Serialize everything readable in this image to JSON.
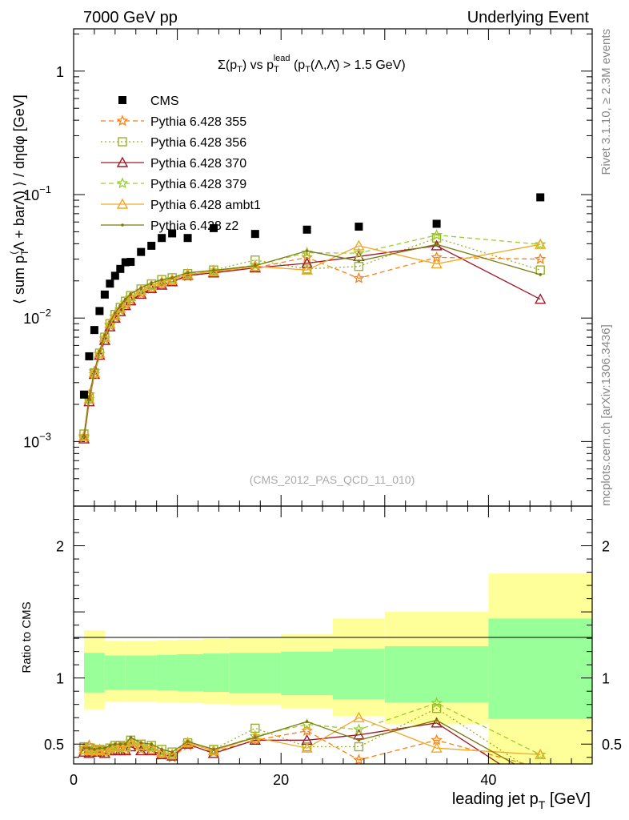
{
  "header": {
    "left": "7000 GeV pp",
    "right": "Underlying Event",
    "side_top": "Rivet 3.1.10, ≥ 2.3M events",
    "side_bottom": "mcplots.cern.ch [arXiv:1306.3436]",
    "watermark": "(CMS_2012_PAS_QCD_11_010)"
  },
  "chart_data": [
    {
      "type": "scatter",
      "panel": "main",
      "title_parts": {
        "a": "Σ(p",
        "a_sub": "T",
        "b": ") vs p",
        "b_sub": "T",
        "b_sup": "lead",
        "c": " (p",
        "c_sub": "T",
        "d": "(Λ,Λ̄) > 1.5 GeV)"
      },
      "ylabel": "⟨ sum p_T(Λ + barΛ) ⟩ / dηdφ [GeV]",
      "ylabel_parts": {
        "a": "⟨ sum p",
        "a_sub": "T",
        "a_sup": "(",
        "b": "Λ + barΛ) ⟩ / dηdφ [GeV]"
      },
      "y_scale": "log",
      "ylim": [
        0.0003,
        2.2
      ],
      "xlim": [
        0,
        50
      ],
      "y_ticks": [
        {
          "value": 0.001,
          "base": "10",
          "exp": "−3"
        },
        {
          "value": 0.01,
          "base": "10",
          "exp": "−2"
        },
        {
          "value": 0.1,
          "base": "10",
          "exp": "−1"
        },
        {
          "value": 1,
          "label": "1"
        }
      ],
      "legend_position": "top-left",
      "series": [
        {
          "name": "CMS",
          "color": "#000000",
          "marker": "square-filled",
          "line": "none",
          "x": [
            1.0,
            1.5,
            2.0,
            2.5,
            3.0,
            3.5,
            4.0,
            4.5,
            5.0,
            5.5,
            6.5,
            7.5,
            8.5,
            9.5,
            11.0,
            13.5,
            17.5,
            22.5,
            27.5,
            35.0,
            45.0
          ],
          "y": [
            0.0024,
            0.0049,
            0.008,
            0.0114,
            0.0155,
            0.019,
            0.022,
            0.025,
            0.0283,
            0.0285,
            0.0343,
            0.0385,
            0.0445,
            0.0485,
            0.0445,
            0.0535,
            0.048,
            0.052,
            0.055,
            0.058,
            0.095
          ]
        },
        {
          "name": "Pythia 6.428 355",
          "color": "#ff7f0e",
          "marker": "star",
          "line": "dashed",
          "x": [
            1.0,
            1.5,
            2.0,
            2.5,
            3.0,
            3.5,
            4.0,
            4.5,
            5.0,
            5.5,
            6.5,
            7.5,
            8.5,
            9.5,
            11.0,
            13.5,
            17.5,
            22.5,
            27.5,
            35.0,
            45.0
          ],
          "y": [
            0.0011,
            0.0024,
            0.0037,
            0.0051,
            0.0068,
            0.0087,
            0.0102,
            0.0116,
            0.0128,
            0.0141,
            0.0158,
            0.0173,
            0.0186,
            0.0196,
            0.0218,
            0.0235,
            0.0255,
            0.031,
            0.021,
            0.031,
            0.03
          ]
        },
        {
          "name": "Pythia 6.428 356",
          "color": "#99b02a",
          "marker": "square-open",
          "line": "dotted",
          "x": [
            1.0,
            1.5,
            2.0,
            2.5,
            3.0,
            3.5,
            4.0,
            4.5,
            5.0,
            5.5,
            6.5,
            7.5,
            8.5,
            9.5,
            11.0,
            13.5,
            17.5,
            22.5,
            27.5,
            35.0,
            45.0
          ],
          "y": [
            0.00115,
            0.0023,
            0.0036,
            0.0052,
            0.007,
            0.009,
            0.0107,
            0.0122,
            0.0137,
            0.0152,
            0.0172,
            0.0189,
            0.0205,
            0.0212,
            0.0229,
            0.0245,
            0.0295,
            0.025,
            0.0262,
            0.0445,
            0.0245
          ]
        },
        {
          "name": "Pythia 6.428 370",
          "color": "#a01826",
          "marker": "triangle-open",
          "line": "solid",
          "x": [
            1.0,
            1.5,
            2.0,
            2.5,
            3.0,
            3.5,
            4.0,
            4.5,
            5.0,
            5.5,
            6.5,
            7.5,
            8.5,
            9.5,
            11.0,
            13.5,
            17.5,
            22.5,
            27.5,
            35.0,
            45.0
          ],
          "y": [
            0.00105,
            0.0021,
            0.0035,
            0.005,
            0.0066,
            0.0085,
            0.01,
            0.0113,
            0.0126,
            0.0138,
            0.0156,
            0.0173,
            0.0185,
            0.0197,
            0.0222,
            0.0232,
            0.0255,
            0.0278,
            0.0315,
            0.0385,
            0.0142
          ]
        },
        {
          "name": "Pythia 6.428 379",
          "color": "#9acd32",
          "marker": "star",
          "line": "dashed",
          "x": [
            1.0,
            1.5,
            2.0,
            2.5,
            3.0,
            3.5,
            4.0,
            4.5,
            5.0,
            5.5,
            6.5,
            7.5,
            8.5,
            9.5,
            11.0,
            13.5,
            17.5,
            22.5,
            27.5,
            35.0,
            45.0
          ],
          "y": [
            0.00108,
            0.0022,
            0.0035,
            0.0051,
            0.0068,
            0.0088,
            0.0103,
            0.0118,
            0.0133,
            0.0147,
            0.0165,
            0.0182,
            0.0197,
            0.0206,
            0.0227,
            0.0242,
            0.0268,
            0.0338,
            0.0335,
            0.047,
            0.0395
          ]
        },
        {
          "name": "Pythia 6.428 ambt1",
          "color": "#f5a623",
          "marker": "triangle-open",
          "line": "solid",
          "x": [
            1.0,
            1.5,
            2.0,
            2.5,
            3.0,
            3.5,
            4.0,
            4.5,
            5.0,
            5.5,
            6.5,
            7.5,
            8.5,
            9.5,
            11.0,
            13.5,
            17.5,
            22.5,
            27.5,
            35.0,
            45.0
          ],
          "y": [
            0.0011,
            0.0022,
            0.0036,
            0.0052,
            0.007,
            0.009,
            0.0106,
            0.012,
            0.0135,
            0.0149,
            0.0167,
            0.0183,
            0.0196,
            0.0205,
            0.0225,
            0.0238,
            0.0262,
            0.0245,
            0.0385,
            0.0275,
            0.0395
          ]
        },
        {
          "name": "Pythia 6.428 z2",
          "color": "#7a7a10",
          "marker": "dot",
          "line": "solid",
          "x": [
            1.0,
            1.5,
            2.0,
            2.5,
            3.0,
            3.5,
            4.0,
            4.5,
            5.0,
            5.5,
            6.5,
            7.5,
            8.5,
            9.5,
            11.0,
            13.5,
            17.5,
            22.5,
            27.5,
            35.0,
            45.0
          ],
          "y": [
            0.00112,
            0.0023,
            0.0037,
            0.0054,
            0.0073,
            0.0093,
            0.011,
            0.0126,
            0.0142,
            0.0157,
            0.0176,
            0.0193,
            0.0204,
            0.0212,
            0.0233,
            0.0243,
            0.0265,
            0.035,
            0.029,
            0.0395,
            0.0225
          ]
        }
      ]
    },
    {
      "type": "line",
      "panel": "ratio",
      "ylabel": "Ratio to CMS",
      "xlabel": "leading jet p",
      "xlabel_sub": "T",
      "xlabel_unit": " [GeV]",
      "xlim": [
        0,
        50
      ],
      "ylim": [
        0.35,
        2.3
      ],
      "x_ticks": [
        0,
        20,
        40
      ],
      "y_ticks": [
        0.5,
        1,
        2
      ],
      "bands": {
        "edges": [
          1,
          3,
          5,
          8,
          10,
          12.5,
          15,
          20,
          25,
          30,
          40,
          50
        ],
        "green_lo": [
          0.89,
          0.91,
          0.91,
          0.905,
          0.9,
          0.895,
          0.885,
          0.87,
          0.84,
          0.815,
          0.69
        ],
        "green_hi": [
          1.19,
          1.17,
          1.17,
          1.175,
          1.18,
          1.185,
          1.19,
          1.2,
          1.22,
          1.24,
          1.45
        ],
        "yellow_lo": [
          0.76,
          0.82,
          0.82,
          0.815,
          0.81,
          0.805,
          0.795,
          0.77,
          0.71,
          0.65,
          0.35
        ],
        "yellow_hi": [
          1.36,
          1.28,
          1.28,
          1.285,
          1.29,
          1.295,
          1.31,
          1.33,
          1.45,
          1.5,
          1.79
        ]
      },
      "series": [
        {
          "name": "Pythia 6.428 355",
          "ratio": [
            0.47,
            0.49,
            0.46,
            0.45,
            0.44,
            0.46,
            0.47,
            0.46,
            0.45,
            0.5,
            0.46,
            0.45,
            0.42,
            0.4,
            0.49,
            0.44,
            0.53,
            0.6,
            0.38,
            0.53,
            0.32
          ]
        },
        {
          "name": "Pythia 6.428 356",
          "ratio": [
            0.48,
            0.47,
            0.45,
            0.46,
            0.45,
            0.47,
            0.49,
            0.49,
            0.48,
            0.53,
            0.5,
            0.49,
            0.46,
            0.44,
            0.51,
            0.46,
            0.62,
            0.48,
            0.48,
            0.77,
            0.26
          ]
        },
        {
          "name": "Pythia 6.428 370",
          "ratio": [
            0.44,
            0.43,
            0.44,
            0.44,
            0.43,
            0.45,
            0.45,
            0.45,
            0.45,
            0.48,
            0.45,
            0.45,
            0.42,
            0.41,
            0.5,
            0.43,
            0.53,
            0.53,
            0.57,
            0.66,
            0.15
          ]
        },
        {
          "name": "Pythia 6.428 379",
          "ratio": [
            0.45,
            0.45,
            0.44,
            0.45,
            0.44,
            0.46,
            0.47,
            0.47,
            0.47,
            0.52,
            0.48,
            0.47,
            0.44,
            0.42,
            0.51,
            0.45,
            0.56,
            0.65,
            0.61,
            0.81,
            0.42
          ]
        },
        {
          "name": "Pythia 6.428 ambt1",
          "ratio": [
            0.46,
            0.45,
            0.45,
            0.46,
            0.45,
            0.47,
            0.48,
            0.48,
            0.48,
            0.52,
            0.49,
            0.48,
            0.44,
            0.42,
            0.51,
            0.45,
            0.55,
            0.47,
            0.7,
            0.47,
            0.42
          ]
        },
        {
          "name": "Pythia 6.428 z2",
          "ratio": [
            0.47,
            0.47,
            0.46,
            0.47,
            0.47,
            0.49,
            0.5,
            0.5,
            0.5,
            0.55,
            0.51,
            0.5,
            0.46,
            0.44,
            0.52,
            0.46,
            0.55,
            0.67,
            0.53,
            0.68,
            0.24
          ]
        }
      ]
    }
  ]
}
